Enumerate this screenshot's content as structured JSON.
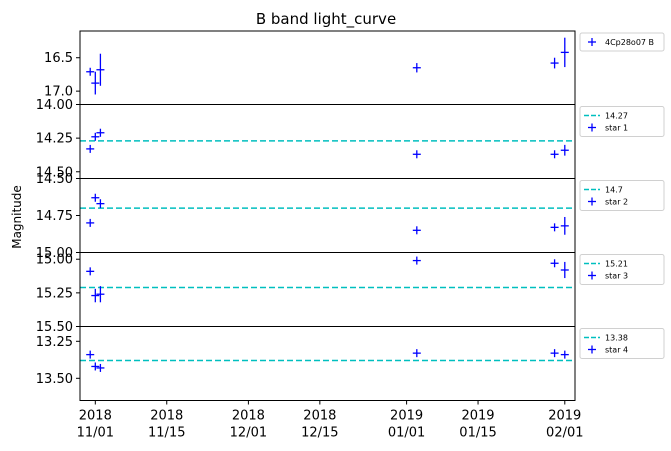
{
  "chart_data": {
    "type": "scatter",
    "title": "B band light_curve",
    "ylabel": "Magnitude",
    "x_ticks": [
      {
        "date": "2018-11-01",
        "line1": "2018",
        "line2": "11/01"
      },
      {
        "date": "2018-11-15",
        "line1": "2018",
        "line2": "11/15"
      },
      {
        "date": "2018-12-01",
        "line1": "2018",
        "line2": "12/01"
      },
      {
        "date": "2018-12-15",
        "line1": "2018",
        "line2": "12/15"
      },
      {
        "date": "2019-01-01",
        "line1": "2019",
        "line2": "01/01"
      },
      {
        "date": "2019-01-15",
        "line1": "2019",
        "line2": "01/15"
      },
      {
        "date": "2019-02-01",
        "line1": "2019",
        "line2": "02/01"
      }
    ],
    "xlim": [
      "2018-10-29",
      "2019-02-03"
    ],
    "panels": [
      {
        "ylim": [
          17.2,
          16.1
        ],
        "yticks": [
          {
            "value": 16.5,
            "label": "16.5"
          },
          {
            "value": 17.0,
            "label": "17.0"
          }
        ],
        "series": [
          {
            "name": "4Cp28o07 B",
            "color": "#0000ff",
            "points": [
              {
                "x": "2018-10-31",
                "y": 16.71,
                "err": 0.05
              },
              {
                "x": "2018-11-01",
                "y": 16.88,
                "err": 0.17
              },
              {
                "x": "2018-11-02",
                "y": 16.68,
                "err": 0.24
              },
              {
                "x": "2019-01-03",
                "y": 16.65,
                "err": 0.07
              },
              {
                "x": "2019-01-30",
                "y": 16.58,
                "err": 0.08
              },
              {
                "x": "2019-02-01",
                "y": 16.42,
                "err": 0.22
              }
            ]
          }
        ]
      },
      {
        "ylim": [
          14.55,
          14.0
        ],
        "yticks": [
          {
            "value": 14.0,
            "label": "14.00"
          },
          {
            "value": 14.25,
            "label": "14.25"
          },
          {
            "value": 14.5,
            "label": "14.50"
          }
        ],
        "ref_line": {
          "value": 14.27,
          "label": "14.27",
          "color": "#00bfbf"
        },
        "series": [
          {
            "name": "star 1",
            "color": "#0000ff",
            "points": [
              {
                "x": "2018-10-31",
                "y": 14.33,
                "err": 0.02
              },
              {
                "x": "2018-11-01",
                "y": 14.24,
                "err": 0.02
              },
              {
                "x": "2018-11-02",
                "y": 14.21,
                "err": 0.03
              },
              {
                "x": "2019-01-03",
                "y": 14.37,
                "err": 0.02
              },
              {
                "x": "2019-01-30",
                "y": 14.37,
                "err": 0.02
              },
              {
                "x": "2019-02-01",
                "y": 14.34,
                "err": 0.04
              }
            ]
          }
        ]
      },
      {
        "ylim": [
          15.0,
          14.5
        ],
        "yticks": [
          {
            "value": 14.5,
            "label": "14.50"
          },
          {
            "value": 14.75,
            "label": "14.75"
          },
          {
            "value": 15.0,
            "label": "15.00"
          }
        ],
        "ref_line": {
          "value": 14.7,
          "label": "14.7",
          "color": "#00bfbf"
        },
        "series": [
          {
            "name": "star 2",
            "color": "#0000ff",
            "points": [
              {
                "x": "2018-10-31",
                "y": 14.8,
                "err": 0.02
              },
              {
                "x": "2018-11-01",
                "y": 14.63,
                "err": 0.02
              },
              {
                "x": "2018-11-02",
                "y": 14.67,
                "err": 0.03
              },
              {
                "x": "2019-01-03",
                "y": 14.85,
                "err": 0.02
              },
              {
                "x": "2019-01-30",
                "y": 14.83,
                "err": 0.02
              },
              {
                "x": "2019-02-01",
                "y": 14.82,
                "err": 0.06
              }
            ]
          }
        ]
      },
      {
        "ylim": [
          15.5,
          14.95
        ],
        "yticks": [
          {
            "value": 15.0,
            "label": "15.00"
          },
          {
            "value": 15.25,
            "label": "15.25"
          },
          {
            "value": 15.5,
            "label": "15.50"
          }
        ],
        "ref_line": {
          "value": 15.21,
          "label": "15.21",
          "color": "#00bfbf"
        },
        "series": [
          {
            "name": "star 3",
            "color": "#0000ff",
            "points": [
              {
                "x": "2018-10-31",
                "y": 15.09,
                "err": 0.02
              },
              {
                "x": "2018-11-01",
                "y": 15.27,
                "err": 0.05
              },
              {
                "x": "2018-11-02",
                "y": 15.26,
                "err": 0.06
              },
              {
                "x": "2019-01-03",
                "y": 15.01,
                "err": 0.02
              },
              {
                "x": "2019-01-30",
                "y": 15.03,
                "err": 0.02
              },
              {
                "x": "2019-02-01",
                "y": 15.08,
                "err": 0.06
              }
            ]
          }
        ]
      },
      {
        "ylim": [
          13.65,
          13.15
        ],
        "yticks": [
          {
            "value": 13.25,
            "label": "13.25"
          },
          {
            "value": 13.5,
            "label": "13.50"
          }
        ],
        "ref_line": {
          "value": 13.38,
          "label": "13.38",
          "color": "#00bfbf"
        },
        "series": [
          {
            "name": "star 4",
            "color": "#0000ff",
            "points": [
              {
                "x": "2018-10-31",
                "y": 13.34,
                "err": 0.02
              },
              {
                "x": "2018-11-01",
                "y": 13.42,
                "err": 0.02
              },
              {
                "x": "2018-11-02",
                "y": 13.43,
                "err": 0.02
              },
              {
                "x": "2019-01-03",
                "y": 13.33,
                "err": 0.02
              },
              {
                "x": "2019-01-30",
                "y": 13.33,
                "err": 0.02
              },
              {
                "x": "2019-02-01",
                "y": 13.34,
                "err": 0.02
              }
            ]
          }
        ]
      }
    ]
  }
}
